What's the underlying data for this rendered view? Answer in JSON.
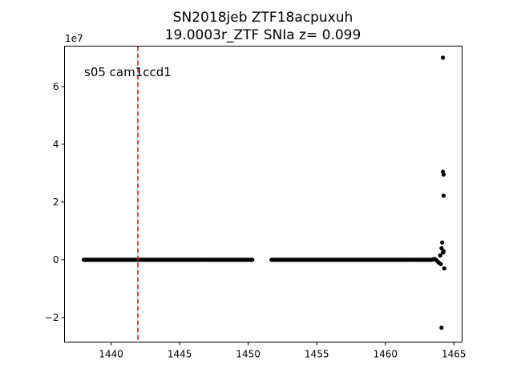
{
  "chart_data": {
    "type": "scatter",
    "title_line1": "SN2018jeb  ZTF18acpuxuh",
    "title_line2": "19.0003r_ZTF SNIa z= 0.099",
    "annotation": "s05 cam1ccd1",
    "y_scale_label": "1e7",
    "xlabel": "",
    "ylabel": "",
    "xlim": [
      1436.6,
      1465.6
    ],
    "ylim": [
      -2.85,
      7.4
    ],
    "xticks": [
      1440,
      1445,
      1450,
      1455,
      1460,
      1465
    ],
    "xtick_labels": [
      "1440",
      "1445",
      "1450",
      "1455",
      "1460",
      "1465"
    ],
    "yticks": [
      -2,
      0,
      2,
      4,
      6
    ],
    "ytick_labels": [
      "−2",
      "0",
      "2",
      "4",
      "6"
    ],
    "vertical_line": {
      "x": 1441.95,
      "color": "#e8171b",
      "style": "dashed"
    },
    "point_color": "#000000",
    "baseline_segments": [
      {
        "x_start": 1438.0,
        "x_end": 1450.3,
        "y": 0.0
      },
      {
        "x_start": 1451.7,
        "x_end": 1463.4,
        "y": 0.0
      }
    ],
    "points": [
      {
        "x": 1463.5,
        "y": 0.02
      },
      {
        "x": 1463.6,
        "y": 0.03
      },
      {
        "x": 1463.7,
        "y": 0.0
      },
      {
        "x": 1463.8,
        "y": -0.05
      },
      {
        "x": 1463.9,
        "y": -0.1
      },
      {
        "x": 1464.0,
        "y": 0.15
      },
      {
        "x": 1464.05,
        "y": -0.15
      },
      {
        "x": 1464.1,
        "y": 0.4
      },
      {
        "x": 1464.15,
        "y": 0.6
      },
      {
        "x": 1464.2,
        "y": 3.05
      },
      {
        "x": 1464.2,
        "y": 0.25
      },
      {
        "x": 1464.25,
        "y": 2.95
      },
      {
        "x": 1464.25,
        "y": 2.22
      },
      {
        "x": 1464.25,
        "y": 0.3
      },
      {
        "x": 1464.3,
        "y": -0.3
      },
      {
        "x": 1464.2,
        "y": 7.0
      },
      {
        "x": 1464.1,
        "y": -2.35
      }
    ]
  }
}
